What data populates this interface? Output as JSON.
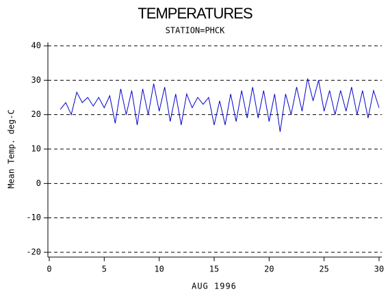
{
  "chart_data": {
    "type": "line",
    "title": "TEMPERATURES",
    "subtitle": "STATION=PHCK",
    "xlabel": "AUG 1996",
    "ylabel": "Mean Temp. deg-C",
    "x": [
      1,
      1.5,
      2,
      2.5,
      3,
      3.5,
      4,
      4.5,
      5,
      5.5,
      6,
      6.5,
      7,
      7.5,
      8,
      8.5,
      9,
      9.5,
      10,
      10.5,
      11,
      11.5,
      12,
      12.5,
      13,
      13.5,
      14,
      14.5,
      15,
      15.5,
      16,
      16.5,
      17,
      17.5,
      18,
      18.5,
      19,
      19.5,
      20,
      20.5,
      21,
      21.5,
      22,
      22.5,
      23,
      23.5,
      24,
      24.5,
      25,
      25.5,
      26,
      26.5,
      27,
      27.5,
      28,
      28.5,
      29,
      29.5,
      30
    ],
    "series": [
      {
        "color": "#0000cc",
        "values": [
          21.5,
          23.5,
          20,
          26.5,
          23.5,
          25,
          22.5,
          25,
          22,
          25.5,
          17.5,
          27.5,
          20,
          27,
          17,
          27.5,
          20,
          29,
          21,
          28,
          18,
          26,
          17,
          26,
          22,
          25,
          23,
          25,
          17,
          24,
          17,
          26,
          18,
          27,
          19,
          28,
          19,
          27,
          18,
          26,
          15,
          26,
          20,
          28,
          21,
          30.5,
          24,
          30,
          21,
          27,
          20,
          27,
          21,
          28,
          20,
          27,
          19,
          27,
          22
        ]
      }
    ],
    "xlim": [
      0,
      30
    ],
    "xticks": [
      0,
      5,
      10,
      15,
      20,
      25,
      30
    ],
    "ylim": [
      -20,
      40
    ],
    "yticks": [
      -20,
      -10,
      0,
      10,
      20,
      30,
      40
    ],
    "grid": true
  }
}
